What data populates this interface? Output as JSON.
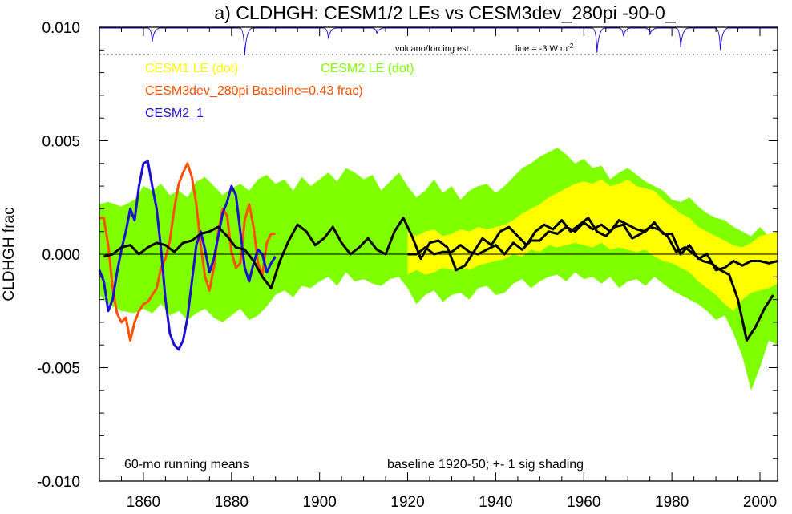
{
  "chart_data": {
    "type": "line",
    "title": "a) CLDHGH: CESM1/2 LEs vs CESM3dev_280pi -90-0_",
    "ylabel": "CLDHGH frac",
    "xlim": [
      1850,
      2004
    ],
    "ylim": [
      -0.01,
      0.01
    ],
    "x_ticks": [
      "1860",
      "1880",
      "1900",
      "1920",
      "1940",
      "1960",
      "1980",
      "2000"
    ],
    "y_ticks": [
      "0.010",
      "0.005",
      "0.000",
      "-0.005",
      "-0.010"
    ],
    "grid": false,
    "legend_entries": {
      "cesm1": "CESM1 LE (dot)",
      "cesm2": "CESM2 LE (dot)",
      "cesm3": "CESM3dev_280pi Baseline=0.43 frac)",
      "cesm2_1": "CESM2_1"
    },
    "annotations": {
      "running_means": "60-mo running means",
      "baseline": "baseline 1920-50; +- 1 sig shading",
      "volcano": "volcano/forcing est.",
      "line_scale": "line = -3 W m",
      "line_scale_sup": "-2"
    },
    "colors": {
      "cesm1": "#ffff00",
      "cesm2": "#7fff00",
      "cesm3": "#ff4f00",
      "cesm2_1": "#1e10d2",
      "ensemble_mean": "#000000",
      "volcano": "#1e10d2"
    },
    "series": [
      {
        "name": "CESM2 LE (dot)",
        "kind": "band",
        "x": [
          1850,
          1852,
          1855,
          1858,
          1860,
          1862,
          1864,
          1866,
          1868,
          1870,
          1872,
          1874,
          1876,
          1878,
          1880,
          1882,
          1884,
          1886,
          1888,
          1890,
          1892,
          1894,
          1896,
          1898,
          1900,
          1902,
          1904,
          1906,
          1908,
          1910,
          1912,
          1914,
          1916,
          1918,
          1920,
          1922,
          1924,
          1926,
          1928,
          1930,
          1932,
          1934,
          1936,
          1938,
          1940,
          1942,
          1944,
          1946,
          1948,
          1950,
          1952,
          1954,
          1956,
          1958,
          1960,
          1962,
          1964,
          1966,
          1968,
          1970,
          1972,
          1974,
          1976,
          1978,
          1980,
          1982,
          1984,
          1986,
          1988,
          1990,
          1992,
          1994,
          1996,
          1998,
          2000,
          2002,
          2004
        ],
        "upper": [
          0.0022,
          0.0023,
          0.0021,
          0.0024,
          0.003,
          0.0028,
          0.0031,
          0.0026,
          0.0028,
          0.0025,
          0.0032,
          0.0034,
          0.003,
          0.0026,
          0.0029,
          0.0031,
          0.0028,
          0.0033,
          0.0035,
          0.0031,
          0.0033,
          0.0028,
          0.0034,
          0.003,
          0.0033,
          0.0036,
          0.0032,
          0.0038,
          0.0036,
          0.0033,
          0.0035,
          0.0028,
          0.0032,
          0.0036,
          0.003,
          0.0025,
          0.0028,
          0.0033,
          0.0027,
          0.003,
          0.0024,
          0.0028,
          0.003,
          0.0031,
          0.0027,
          0.003,
          0.0034,
          0.0038,
          0.004,
          0.0043,
          0.0045,
          0.0047,
          0.0044,
          0.004,
          0.0042,
          0.0038,
          0.0039,
          0.0033,
          0.0036,
          0.0038,
          0.0035,
          0.0032,
          0.003,
          0.0028,
          0.0024,
          0.0023,
          0.0025,
          0.0021,
          0.0018,
          0.0016,
          0.0015,
          0.0012,
          0.001,
          0.0008,
          0.0012,
          0.0008,
          0.001
        ],
        "lower": [
          -0.0018,
          -0.0022,
          -0.0025,
          -0.0026,
          -0.0024,
          -0.0026,
          -0.0022,
          -0.0027,
          -0.0025,
          -0.0029,
          -0.0026,
          -0.0024,
          -0.0028,
          -0.003,
          -0.0027,
          -0.0024,
          -0.0029,
          -0.0027,
          -0.0023,
          -0.0018,
          -0.0016,
          -0.0019,
          -0.0014,
          -0.0015,
          -0.0012,
          -0.001,
          -0.0014,
          -0.0008,
          -0.0012,
          -0.0011,
          -0.0013,
          -0.0014,
          -0.0011,
          -0.001,
          -0.0015,
          -0.0022,
          -0.0018,
          -0.0016,
          -0.0021,
          -0.0018,
          -0.0017,
          -0.002,
          -0.0015,
          -0.0014,
          -0.0018,
          -0.0017,
          -0.0013,
          -0.0011,
          -0.0015,
          -0.0012,
          -0.001,
          -0.0009,
          -0.0012,
          -0.0008,
          -0.0011,
          -0.001,
          -0.0013,
          -0.001,
          -0.0015,
          -0.0012,
          -0.0011,
          -0.0014,
          -0.001,
          -0.0013,
          -0.0016,
          -0.0018,
          -0.002,
          -0.0022,
          -0.0025,
          -0.0029,
          -0.0027,
          -0.0035,
          -0.0045,
          -0.006,
          -0.005,
          -0.0038,
          -0.004
        ]
      },
      {
        "name": "CESM1 LE (dot)",
        "kind": "band",
        "x": [
          1920,
          1922,
          1924,
          1926,
          1928,
          1930,
          1932,
          1934,
          1936,
          1938,
          1940,
          1942,
          1944,
          1946,
          1948,
          1950,
          1952,
          1954,
          1956,
          1958,
          1960,
          1962,
          1964,
          1966,
          1968,
          1970,
          1972,
          1974,
          1976,
          1978,
          1980,
          1982,
          1984,
          1986,
          1988,
          1990,
          1992,
          1994,
          1996,
          1998,
          2000,
          2002,
          2004
        ],
        "upper": [
          0.001,
          0.0008,
          0.001,
          0.0011,
          0.0008,
          0.0009,
          0.0011,
          0.001,
          0.0012,
          0.0011,
          0.0012,
          0.0013,
          0.0015,
          0.0018,
          0.002,
          0.0022,
          0.0025,
          0.0027,
          0.0029,
          0.0031,
          0.0032,
          0.0031,
          0.0033,
          0.003,
          0.0031,
          0.0033,
          0.003,
          0.0029,
          0.0028,
          0.0024,
          0.0021,
          0.0018,
          0.0016,
          0.0012,
          0.001,
          0.0008,
          0.0006,
          0.0004,
          0.0003,
          0.0005,
          0.0008,
          0.0009,
          0.001
        ],
        "lower": [
          -0.0009,
          -0.0007,
          -0.0009,
          -0.0008,
          -0.0006,
          -0.0007,
          -0.0006,
          -0.0007,
          -0.0005,
          -0.0004,
          -0.0003,
          -0.0002,
          0.0,
          -0.0001,
          0.0002,
          0.0001,
          0.0004,
          0.0003,
          0.0004,
          0.0005,
          0.0004,
          0.0003,
          0.0005,
          0.0002,
          0.0003,
          0.0002,
          0.0001,
          0.0002,
          -0.0001,
          -0.0003,
          -0.0004,
          -0.0006,
          -0.0008,
          -0.0012,
          -0.0015,
          -0.0018,
          -0.0022,
          -0.0025,
          -0.002,
          -0.0017,
          -0.0016,
          -0.0015,
          -0.0013
        ]
      },
      {
        "name": "CESM3dev_280pi Baseline=0.43 frac)",
        "kind": "line",
        "x": [
          1850,
          1851,
          1852,
          1853,
          1854,
          1855,
          1856,
          1857,
          1858,
          1859,
          1860,
          1861,
          1862,
          1863,
          1864,
          1865,
          1866,
          1867,
          1868,
          1869,
          1870,
          1871,
          1872,
          1873,
          1874,
          1875,
          1876,
          1877,
          1878,
          1879,
          1880,
          1881,
          1882,
          1883,
          1884,
          1885,
          1886,
          1887,
          1888,
          1889,
          1890
        ],
        "values": [
          0.0016,
          0.0016,
          0.0004,
          -0.0015,
          -0.0026,
          -0.003,
          -0.0028,
          -0.0038,
          -0.003,
          -0.0025,
          -0.0022,
          -0.0021,
          -0.0018,
          -0.0015,
          -0.0006,
          -0.0002,
          0.0006,
          0.002,
          0.0031,
          0.0036,
          0.004,
          0.0034,
          0.0022,
          0.0004,
          -0.001,
          -0.0016,
          -0.0006,
          0.001,
          0.002,
          0.0017,
          0.0001,
          -0.0006,
          -0.0004,
          0.0015,
          0.0022,
          0.0012,
          -0.0004,
          -0.0009,
          0.0005,
          0.0009,
          0.0009
        ]
      },
      {
        "name": "CESM2_1",
        "kind": "line",
        "x": [
          1850,
          1851,
          1852,
          1853,
          1854,
          1855,
          1856,
          1857,
          1858,
          1859,
          1860,
          1861,
          1862,
          1863,
          1864,
          1865,
          1866,
          1867,
          1868,
          1869,
          1870,
          1871,
          1872,
          1873,
          1874,
          1875,
          1876,
          1877,
          1878,
          1879,
          1880,
          1881,
          1882,
          1883,
          1884,
          1885,
          1886,
          1887,
          1888,
          1889,
          1890
        ],
        "values": [
          -0.0007,
          -0.0012,
          -0.0025,
          -0.002,
          -0.0008,
          0.0002,
          0.001,
          0.002,
          0.0015,
          0.003,
          0.004,
          0.0041,
          0.003,
          0.002,
          0.0002,
          -0.002,
          -0.0035,
          -0.004,
          -0.0042,
          -0.0038,
          -0.0028,
          -0.0012,
          0.0004,
          0.001,
          0.0002,
          -0.0008,
          -0.0002,
          0.0008,
          0.0018,
          0.0023,
          0.003,
          0.0026,
          0.001,
          -0.0006,
          -0.0012,
          -0.0004,
          0.0002,
          0.0,
          -0.0008,
          -0.0004,
          -0.0001
        ]
      },
      {
        "name": "CESM2 LE ensemble mean",
        "kind": "line",
        "x": [
          1851,
          1853,
          1855,
          1857,
          1859,
          1861,
          1863,
          1865,
          1867,
          1869,
          1871,
          1873,
          1875,
          1877,
          1879,
          1881,
          1883,
          1885,
          1887,
          1889,
          1891,
          1893,
          1895,
          1897,
          1899,
          1901,
          1903,
          1905,
          1907,
          1909,
          1911,
          1913,
          1915,
          1917,
          1919,
          1921,
          1923,
          1925,
          1927,
          1929,
          1931,
          1933,
          1935,
          1937,
          1939,
          1941,
          1943,
          1945,
          1947,
          1949,
          1951,
          1953,
          1955,
          1957,
          1959,
          1961,
          1963,
          1965,
          1967,
          1969,
          1971,
          1973,
          1975,
          1977,
          1979,
          1981,
          1983,
          1985,
          1987,
          1989,
          1991,
          1993,
          1995,
          1997,
          1999,
          2001,
          2003
        ],
        "values": [
          -0.0001,
          0.0,
          0.0003,
          0.0004,
          0.0,
          0.0003,
          0.0005,
          0.0004,
          0.0001,
          0.0005,
          0.0006,
          0.0009,
          0.001,
          0.0012,
          0.0008,
          0.0003,
          0.0002,
          -0.0003,
          -0.001,
          -0.0015,
          -0.0003,
          0.0006,
          0.0013,
          0.001,
          0.0004,
          0.0007,
          0.0012,
          0.0005,
          0.0,
          0.0003,
          0.0007,
          0.0002,
          0.0,
          0.001,
          0.0016,
          0.0008,
          -0.0002,
          0.0005,
          0.0006,
          0.0003,
          -0.0007,
          -0.0005,
          0.0001,
          0.0007,
          0.0004,
          0.001,
          0.0012,
          0.0008,
          0.0004,
          0.001,
          0.0013,
          0.0011,
          0.0015,
          0.001,
          0.0013,
          0.0016,
          0.001,
          0.0008,
          0.0012,
          0.0013,
          0.0007,
          0.0009,
          0.0012,
          0.0011,
          0.0008,
          0.0001,
          0.0003,
          0.0,
          -0.0003,
          -0.0004,
          -0.0007,
          -0.0009,
          -0.002,
          -0.0038,
          -0.0032,
          -0.0024,
          -0.0018
        ]
      },
      {
        "name": "CESM1 LE ensemble mean",
        "kind": "line",
        "x": [
          1920,
          1922,
          1924,
          1926,
          1928,
          1930,
          1932,
          1934,
          1936,
          1938,
          1940,
          1942,
          1944,
          1946,
          1948,
          1950,
          1952,
          1954,
          1956,
          1958,
          1960,
          1962,
          1964,
          1966,
          1968,
          1970,
          1972,
          1974,
          1976,
          1978,
          1980,
          1982,
          1984,
          1986,
          1988,
          1990,
          1992,
          1994,
          1996,
          1998,
          2000,
          2002,
          2004
        ],
        "values": [
          0.0,
          0.0,
          0.0003,
          0.0,
          0.0001,
          0.0001,
          0.0004,
          0.0001,
          0.0,
          0.0002,
          0.0004,
          0.0,
          0.0005,
          0.0002,
          0.0006,
          0.0006,
          0.001,
          0.0009,
          0.0012,
          0.001,
          0.0014,
          0.0011,
          0.0013,
          0.001,
          0.0015,
          0.0013,
          0.0011,
          0.001,
          0.0014,
          0.0009,
          0.0009,
          0.0,
          0.0004,
          -0.0002,
          0.0,
          -0.0007,
          -0.0006,
          -0.0003,
          -0.0005,
          -0.0003,
          -0.0003,
          -0.0004,
          -0.0003
        ]
      },
      {
        "name": "volcano/forcing est.",
        "kind": "volcano",
        "x": [
          1862,
          1883,
          1902,
          1913,
          1963,
          1969,
          1975,
          1982,
          1991
        ],
        "depth": [
          0.5,
          1.0,
          0.4,
          0.2,
          0.9,
          0.3,
          0.25,
          0.7,
          0.8
        ]
      }
    ]
  }
}
